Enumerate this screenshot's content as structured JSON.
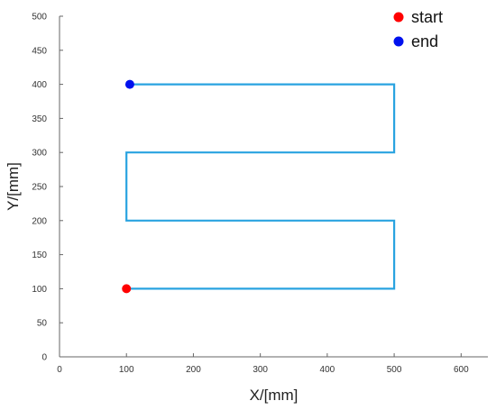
{
  "chart_data": {
    "type": "line",
    "title": "",
    "xlabel": "X/[mm]",
    "ylabel": "Y/[mm]",
    "xlim": [
      0,
      640
    ],
    "ylim": [
      0,
      500
    ],
    "xticks": [
      0,
      100,
      200,
      300,
      400,
      500,
      600
    ],
    "yticks": [
      0,
      50,
      100,
      150,
      200,
      250,
      300,
      350,
      400,
      450,
      500
    ],
    "grid": false,
    "legend_position": "top-right",
    "series": [
      {
        "type": "line",
        "color": "#29a3e0",
        "x": [
          100,
          500,
          500,
          100,
          100,
          500,
          500,
          105
        ],
        "y": [
          100,
          100,
          200,
          200,
          300,
          300,
          400,
          400
        ]
      }
    ],
    "markers": [
      {
        "name": "start",
        "x": 100,
        "y": 100,
        "color": "#ff0000"
      },
      {
        "name": "end",
        "x": 105,
        "y": 400,
        "color": "#0011ee"
      }
    ]
  }
}
